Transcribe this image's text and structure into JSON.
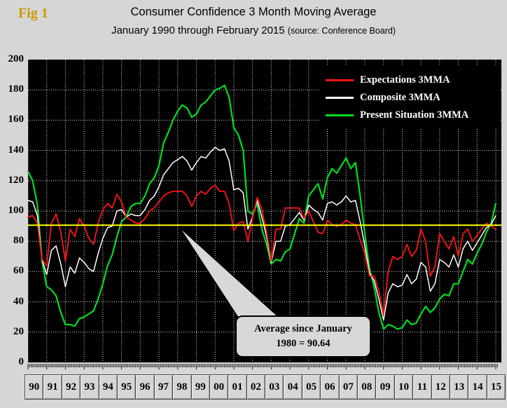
{
  "fig_label": "Fig 1",
  "header": {
    "title": "Consumer Confidence 3 Month Moving Average",
    "subtitle": "January 1990 through February 2015",
    "source": "(source: Conference Board)"
  },
  "annotation": {
    "line1": "Average since January",
    "line2": "1980 = 90.64"
  },
  "chart_data": {
    "type": "line",
    "title": "Consumer Confidence 3 Month Moving Average",
    "subtitle": "January 1990 through February 2015 (source: Conference Board)",
    "x_start": 1990.0,
    "x_step": 0.25,
    "xlim": [
      1990,
      2015.3
    ],
    "ylim": [
      0,
      200
    ],
    "y_ticks": [
      0,
      20,
      40,
      60,
      80,
      100,
      120,
      140,
      160,
      180,
      200
    ],
    "x_tick_labels": [
      "90",
      "91",
      "92",
      "93",
      "94",
      "95",
      "96",
      "97",
      "98",
      "99",
      "00",
      "01",
      "02",
      "03",
      "04",
      "05",
      "06",
      "07",
      "08",
      "09",
      "10",
      "11",
      "12",
      "13",
      "14",
      "15"
    ],
    "grid": true,
    "legend_position": "top-right",
    "plot_background": "#000000",
    "reference_line": {
      "value": 90.64,
      "color": "#ffff00",
      "label": "Average since January 1980 = 90.64"
    },
    "series": [
      {
        "name": "Expectations 3MMA",
        "color": "#ff1414",
        "values": [
          96,
          97,
          92,
          68,
          64,
          92,
          98,
          86,
          67,
          88,
          83,
          95,
          90,
          82,
          78,
          92,
          101,
          105,
          102,
          111,
          106,
          96,
          94,
          92,
          92,
          95,
          100,
          102,
          106,
          110,
          112,
          113,
          113,
          113,
          110,
          103,
          110,
          113,
          111,
          115,
          117,
          113,
          113,
          105,
          87,
          92,
          93,
          80,
          95,
          109,
          101,
          86,
          67,
          88,
          88,
          102,
          102,
          102,
          102,
          95,
          100,
          93,
          86,
          85,
          94,
          91,
          90,
          91,
          94,
          92,
          91,
          81,
          72,
          57,
          57,
          47,
          32,
          60,
          70,
          68,
          70,
          78,
          70,
          74,
          88,
          80,
          57,
          63,
          85,
          80,
          75,
          83,
          70,
          85,
          88,
          80,
          84,
          88,
          92,
          90,
          88
        ]
      },
      {
        "name": "Composite 3MMA",
        "color": "#ffffff",
        "values": [
          107,
          106,
          97,
          68,
          58,
          74,
          77,
          65,
          50,
          63,
          59,
          69,
          66,
          62,
          60,
          72,
          82,
          89,
          90,
          100,
          101,
          96,
          98,
          97,
          97,
          101,
          107,
          110,
          116,
          124,
          128,
          132,
          134,
          136,
          133,
          127,
          132,
          136,
          135,
          139,
          142,
          140,
          141,
          133,
          114,
          115,
          112,
          88,
          96,
          107,
          96,
          83,
          66,
          80,
          80,
          90,
          91,
          95,
          99,
          94,
          104,
          101,
          99,
          94,
          105,
          106,
          104,
          106,
          110,
          106,
          107,
          93,
          77,
          59,
          54,
          42,
          28,
          46,
          52,
          50,
          51,
          58,
          52,
          55,
          66,
          63,
          47,
          52,
          68,
          66,
          63,
          71,
          63,
          75,
          80,
          74,
          79,
          84,
          89,
          91,
          97
        ]
      },
      {
        "name": "Present Situation 3MMA",
        "color": "#00dd22",
        "values": [
          126,
          120,
          104,
          67,
          50,
          48,
          44,
          33,
          25,
          25,
          24,
          29,
          30,
          32,
          34,
          42,
          52,
          64,
          71,
          83,
          93,
          96,
          103,
          105,
          105,
          110,
          118,
          122,
          130,
          145,
          152,
          160,
          166,
          170,
          168,
          162,
          164,
          170,
          172,
          176,
          180,
          181,
          183,
          175,
          155,
          150,
          140,
          100,
          98,
          105,
          88,
          78,
          65,
          68,
          67,
          73,
          75,
          85,
          95,
          92,
          110,
          114,
          118,
          108,
          122,
          128,
          125,
          130,
          135,
          128,
          132,
          110,
          85,
          62,
          50,
          33,
          22,
          25,
          24,
          22,
          23,
          28,
          25,
          26,
          32,
          37,
          33,
          36,
          42,
          45,
          44,
          52,
          52,
          60,
          68,
          65,
          72,
          78,
          86,
          92,
          105
        ]
      }
    ]
  }
}
